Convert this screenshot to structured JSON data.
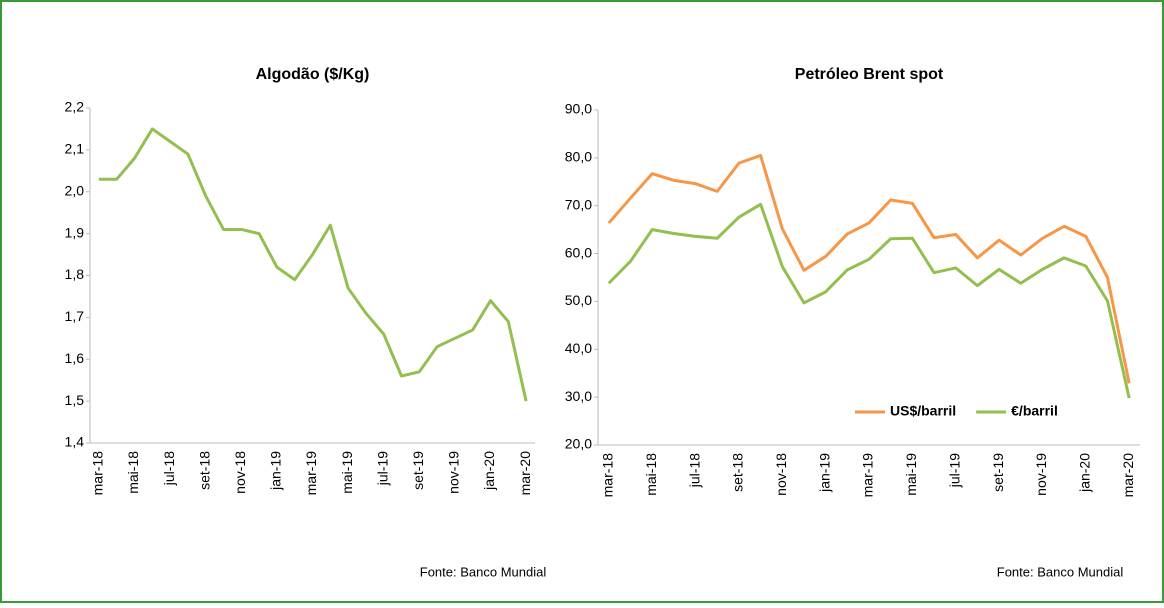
{
  "chart_data": [
    {
      "type": "line",
      "title": "Algodão ($/Kg)",
      "source": "Fonte: Banco Mundial",
      "categories": [
        "mar-18",
        null,
        "mai-18",
        null,
        "jul-18",
        null,
        "set-18",
        null,
        "nov-18",
        null,
        "jan-19",
        null,
        "mar-19",
        null,
        "mai-19",
        null,
        "jul-19",
        null,
        "set-19",
        null,
        "nov-19",
        null,
        "jan-20",
        null,
        "mar-20"
      ],
      "series": [
        {
          "color": "#92bf50",
          "values": [
            2.03,
            2.03,
            2.08,
            2.15,
            2.12,
            2.09,
            1.99,
            1.91,
            1.91,
            1.9,
            1.82,
            1.79,
            1.85,
            1.92,
            1.77,
            1.71,
            1.66,
            1.56,
            1.57,
            1.63,
            1.65,
            1.67,
            1.74,
            1.69,
            1.5
          ]
        }
      ],
      "ylim": [
        1.4,
        2.2
      ],
      "yticks": [
        {
          "value": 1.4,
          "label": "1,4"
        },
        {
          "value": 1.5,
          "label": "1,5"
        },
        {
          "value": 1.6,
          "label": "1,6"
        },
        {
          "value": 1.7,
          "label": "1,7"
        },
        {
          "value": 1.8,
          "label": "1,8"
        },
        {
          "value": 1.9,
          "label": "1,9"
        },
        {
          "value": 2.0,
          "label": "2,0"
        },
        {
          "value": 2.1,
          "label": "2,1"
        },
        {
          "value": 2.2,
          "label": "2,2"
        }
      ],
      "grid": false
    },
    {
      "type": "line",
      "title": "Petróleo  Brent spot",
      "source": "Fonte: Banco Mundial",
      "categories": [
        "mar-18",
        null,
        "mai-18",
        null,
        "jul-18",
        null,
        "set-18",
        null,
        "nov-18",
        null,
        "jan-19",
        null,
        "mar-19",
        null,
        "mai-19",
        null,
        "jul-19",
        null,
        "set-19",
        null,
        "nov-19",
        null,
        "jan-20",
        null,
        "mar-20"
      ],
      "series": [
        {
          "name": "US$/barril",
          "color": "#f79646",
          "values": [
            66.4,
            71.6,
            76.7,
            75.3,
            74.6,
            73.0,
            78.9,
            80.5,
            65.2,
            56.5,
            59.4,
            64.1,
            66.4,
            71.2,
            70.5,
            63.3,
            64.0,
            59.1,
            62.8,
            59.7,
            63.2,
            65.7,
            63.6,
            55.0,
            32.9
          ]
        },
        {
          "name": "€/barril",
          "color": "#92bf50",
          "values": [
            53.8,
            58.4,
            65.0,
            64.2,
            63.6,
            63.2,
            67.6,
            70.3,
            57.3,
            49.7,
            52.0,
            56.6,
            58.8,
            63.1,
            63.2,
            56.0,
            57.0,
            53.3,
            56.7,
            53.8,
            56.7,
            59.1,
            57.4,
            50.1,
            29.8
          ]
        }
      ],
      "ylim": [
        20,
        90
      ],
      "yticks": [
        {
          "value": 20,
          "label": "20,0"
        },
        {
          "value": 30,
          "label": "30,0"
        },
        {
          "value": 40,
          "label": "40,0"
        },
        {
          "value": 50,
          "label": "50,0"
        },
        {
          "value": 60,
          "label": "60,0"
        },
        {
          "value": 70,
          "label": "70,0"
        },
        {
          "value": 80,
          "label": "80,0"
        },
        {
          "value": 90,
          "label": "90,0"
        }
      ],
      "grid": false,
      "legend": "bottom-right"
    }
  ]
}
